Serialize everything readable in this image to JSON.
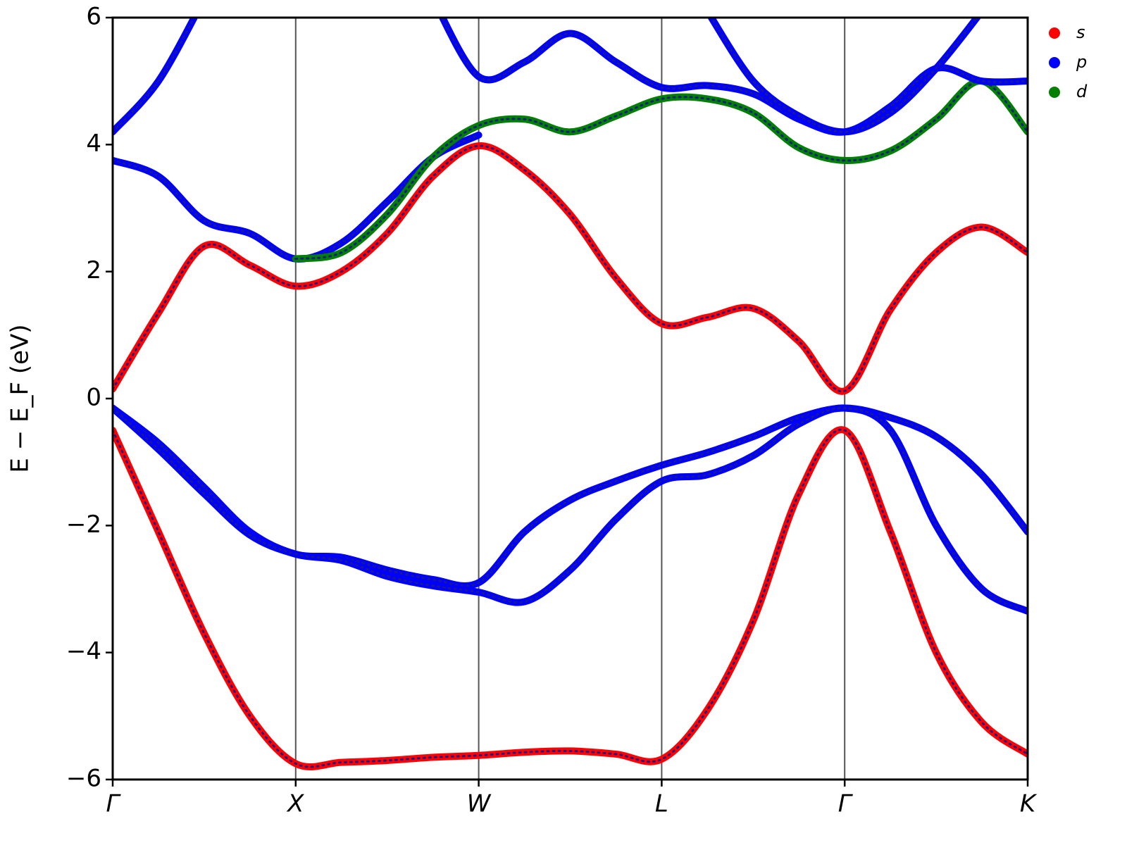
{
  "chart_data": {
    "type": "line",
    "y_label": "E − E_F (eV)",
    "xlim": [
      0,
      5
    ],
    "xticks": [
      {
        "value": 0,
        "label": "Γ"
      },
      {
        "value": 1,
        "label": "X"
      },
      {
        "value": 2,
        "label": "W"
      },
      {
        "value": 3,
        "label": "L"
      },
      {
        "value": 4,
        "label": "Γ"
      },
      {
        "value": 5,
        "label": "K"
      }
    ],
    "ylim": [
      -6,
      6
    ],
    "yticks": [
      {
        "value": -6,
        "label": "−6"
      },
      {
        "value": -4,
        "label": "−4"
      },
      {
        "value": -2,
        "label": "−2"
      },
      0,
      2,
      4,
      6
    ],
    "vertical_lines": true,
    "legend_position": "outside-upper-right",
    "legend": [
      {
        "name": "s",
        "color": "#ff0000"
      },
      {
        "name": "p",
        "color": "#0000ff"
      },
      {
        "name": "d",
        "color": "#008000"
      }
    ],
    "x": [
      0,
      0.25,
      0.5,
      0.75,
      1,
      1.25,
      1.5,
      1.75,
      2,
      2.25,
      2.5,
      2.75,
      3,
      3.25,
      3.5,
      3.75,
      4,
      4.25,
      4.5,
      4.75,
      5
    ],
    "series": [
      {
        "color": "#ff0000",
        "values": [
          -0.5,
          -2.1,
          -3.7,
          -5.0,
          -5.75,
          -5.73,
          -5.7,
          -5.65,
          -5.62,
          -5.57,
          -5.55,
          -5.6,
          -5.68,
          -4.9,
          -3.5,
          -1.5,
          -0.5,
          -2.1,
          -4.0,
          -5.1,
          -5.6
        ]
      },
      {
        "color": "#0000ff",
        "values": [
          -0.15,
          -0.7,
          -1.4,
          -2.1,
          -2.45,
          -2.5,
          -2.7,
          -2.85,
          -2.9,
          -2.1,
          -1.6,
          -1.3,
          -1.05,
          -0.85,
          -0.6,
          -0.3,
          -0.15,
          -0.3,
          -0.6,
          -1.2,
          -2.1
        ]
      },
      {
        "color": "#0000ff",
        "values": [
          -0.15,
          -0.8,
          -1.5,
          -2.15,
          -2.45,
          -2.55,
          -2.8,
          -2.95,
          -3.05,
          -3.2,
          -2.7,
          -1.9,
          -1.3,
          -1.2,
          -0.9,
          -0.4,
          -0.15,
          -0.5,
          -2.0,
          -3.0,
          -3.35
        ]
      },
      {
        "color": "#ff0000",
        "values": [
          0.15,
          1.35,
          2.4,
          2.1,
          1.77,
          2.0,
          2.6,
          3.5,
          3.98,
          3.6,
          2.9,
          1.9,
          1.18,
          1.28,
          1.42,
          0.9,
          0.12,
          1.4,
          2.3,
          2.7,
          2.3
        ]
      },
      {
        "color": "#0000ff",
        "values": [
          3.75,
          3.5,
          2.8,
          2.6,
          2.2,
          2.45,
          3.1,
          3.8,
          4.15,
          null,
          null,
          null,
          null,
          null,
          null,
          null,
          null,
          null,
          null,
          null,
          null
        ]
      },
      {
        "color": "#0000ff",
        "values": [
          4.2,
          5.0,
          6.3,
          null,
          null,
          null,
          null,
          null,
          null,
          null,
          null,
          null,
          null,
          null,
          null,
          null,
          null,
          null,
          null,
          null,
          null
        ]
      },
      {
        "color": "#008000",
        "values": [
          null,
          null,
          null,
          null,
          2.2,
          2.3,
          2.9,
          3.8,
          4.3,
          4.4,
          4.2,
          4.45,
          4.72,
          4.72,
          4.5,
          3.95,
          3.75,
          3.9,
          4.4,
          5.0,
          4.2
        ]
      },
      {
        "color": "#0000ff",
        "values": [
          null,
          null,
          null,
          null,
          null,
          null,
          null,
          6.3,
          5.07,
          5.3,
          5.75,
          5.3,
          4.9,
          4.93,
          4.8,
          4.4,
          4.2,
          4.6,
          5.2,
          5.0,
          5.0
        ]
      },
      {
        "color": "#0000ff",
        "values": [
          null,
          null,
          null,
          null,
          null,
          null,
          null,
          null,
          null,
          null,
          null,
          null,
          null,
          6.1,
          5.0,
          4.45,
          4.2,
          4.5,
          5.2,
          6.1,
          null
        ]
      }
    ]
  }
}
